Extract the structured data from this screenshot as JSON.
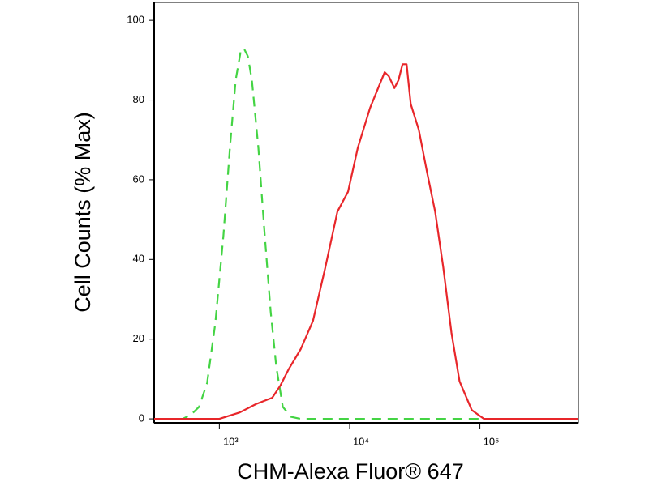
{
  "chart_data": {
    "type": "line",
    "log_x": true,
    "x_label": "CHM-Alexa Fluor® 647",
    "y_label": "Cell Counts (% Max)",
    "xlim": [
      316,
      570000
    ],
    "ylim": [
      -1,
      104.5
    ],
    "xticks": [
      {
        "value": 1000,
        "label": "10³"
      },
      {
        "value": 10000,
        "label": "10⁴"
      },
      {
        "value": 100000,
        "label": "10⁵"
      }
    ],
    "yticks": [
      0,
      20,
      40,
      60,
      80,
      100
    ],
    "series": [
      {
        "color": "#44d444",
        "dashed": true,
        "x": [
          365,
          523,
          604,
          698,
          806,
          931,
          1075,
          1206,
          1334,
          1454,
          1540,
          1655,
          1778,
          1995,
          2207,
          2477,
          2738,
          3072,
          3548,
          4217,
          487000
        ],
        "values": [
          0,
          0,
          1,
          3,
          9,
          24,
          46,
          68,
          85,
          92,
          93,
          91,
          85,
          68,
          48,
          27,
          13,
          3,
          0.5,
          0,
          0
        ]
      },
      {
        "color": "#e8262a",
        "dashed": false,
        "x": [
          316,
          1000,
          1433,
          1911,
          2548,
          2943,
          3398,
          4217,
          5233,
          6494,
          8058,
          9716,
          11550,
          14330,
          16550,
          18570,
          19950,
          22080,
          23710,
          25480,
          27380,
          29430,
          33980,
          39240,
          45320,
          52330,
          60430,
          69780,
          86600,
          107500,
          570000
        ],
        "values": [
          0,
          0,
          1.6,
          3.7,
          5.3,
          8.4,
          12.4,
          17.5,
          24.6,
          37.9,
          52,
          57,
          68,
          78,
          83,
          87,
          86,
          83,
          85,
          89,
          89,
          79,
          72.5,
          62,
          52,
          38,
          21.6,
          9.4,
          2.2,
          0,
          0
        ]
      }
    ]
  }
}
